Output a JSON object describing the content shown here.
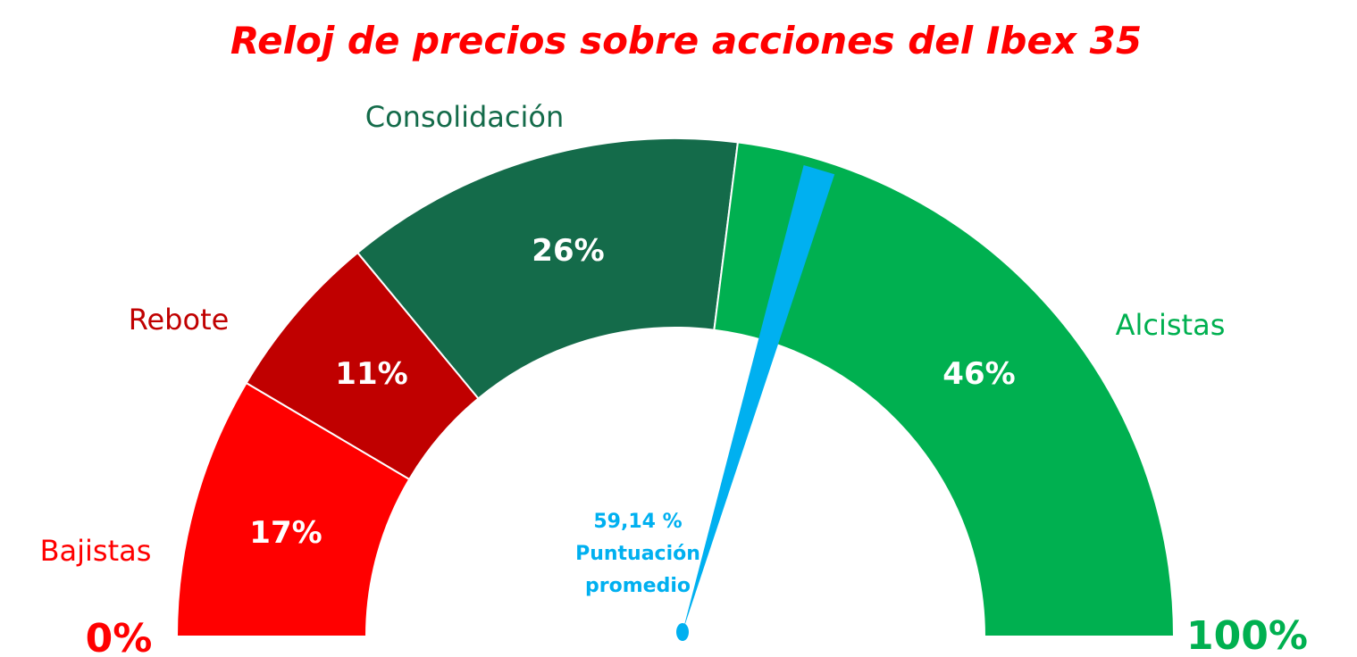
{
  "chart_data": {
    "type": "gauge",
    "title": "Reloj de precios sobre acciones del Ibex 35",
    "segments": [
      {
        "name": "Bajistas",
        "value": 17,
        "label": "17%",
        "color": "#FF0000",
        "name_color": "#FF0000"
      },
      {
        "name": "Rebote",
        "value": 11,
        "label": "11%",
        "color": "#C00000",
        "name_color": "#C00000"
      },
      {
        "name": "Consolidación",
        "value": 26,
        "label": "26%",
        "color": "#146B4A",
        "name_color": "#146B4A"
      },
      {
        "name": "Alcistas",
        "value": 46,
        "label": "46%",
        "color": "#00B050",
        "name_color": "#00B050"
      }
    ],
    "range": [
      0,
      100
    ],
    "min_label": "0%",
    "max_label": "100%",
    "min_label_color": "#FF0000",
    "max_label_color": "#00B050",
    "needle": {
      "value": 59.14,
      "value_text": "59,14 %",
      "caption_line1": "Puntuación",
      "caption_line2": "promedio",
      "color": "#00B0F0"
    },
    "title_color": "#FF0000",
    "percent_label_color": "#FFFFFF"
  }
}
